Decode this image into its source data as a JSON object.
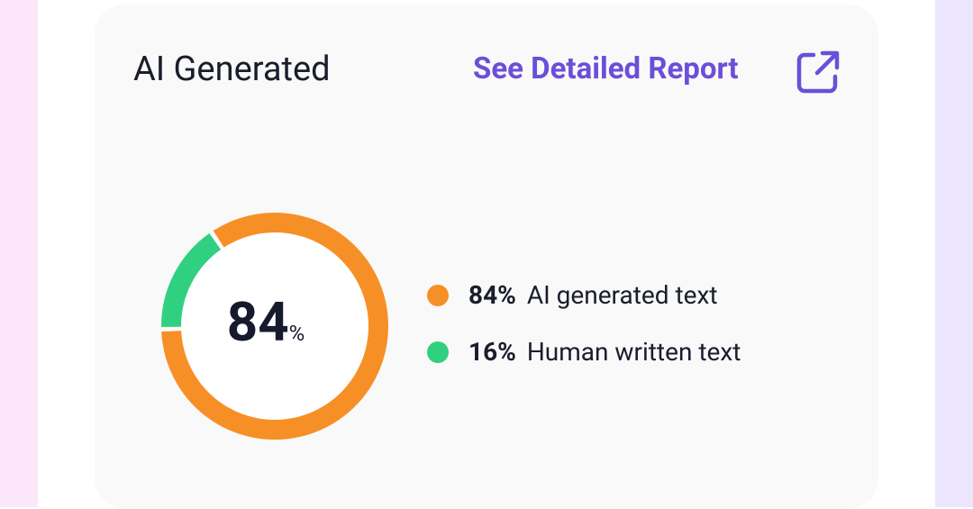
{
  "card": {
    "title": "AI Generated",
    "link": "See Detailed Report"
  },
  "chart_data": {
    "type": "donut",
    "categories": [
      "AI generated text",
      "Human written text"
    ],
    "values": [
      84,
      16
    ],
    "value_labels": [
      "84%",
      "16%"
    ],
    "colors": [
      "#f78f27",
      "#2fd180"
    ],
    "center_value": 84,
    "center_unit": "%"
  }
}
